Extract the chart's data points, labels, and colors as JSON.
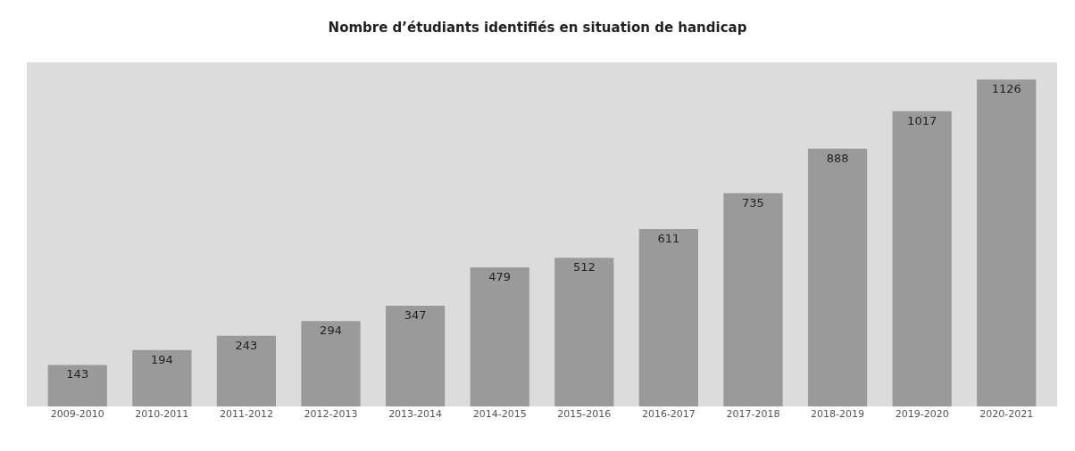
{
  "chart_data": {
    "type": "bar",
    "title": "Nombre d’étudiants identifiés en situation de handicap",
    "categories": [
      "2009-2010",
      "2010-2011",
      "2011-2012",
      "2012-2013",
      "2013-2014",
      "2014-2015",
      "2015-2016",
      "2016-2017",
      "2017-2018",
      "2018-2019",
      "2019-2020",
      "2020-2021"
    ],
    "values": [
      143,
      194,
      243,
      294,
      347,
      479,
      512,
      611,
      735,
      888,
      1017,
      1126
    ],
    "color": "#9a9a9a",
    "data_labels": true,
    "grid": false,
    "legend": false,
    "tick_labels": "x"
  }
}
